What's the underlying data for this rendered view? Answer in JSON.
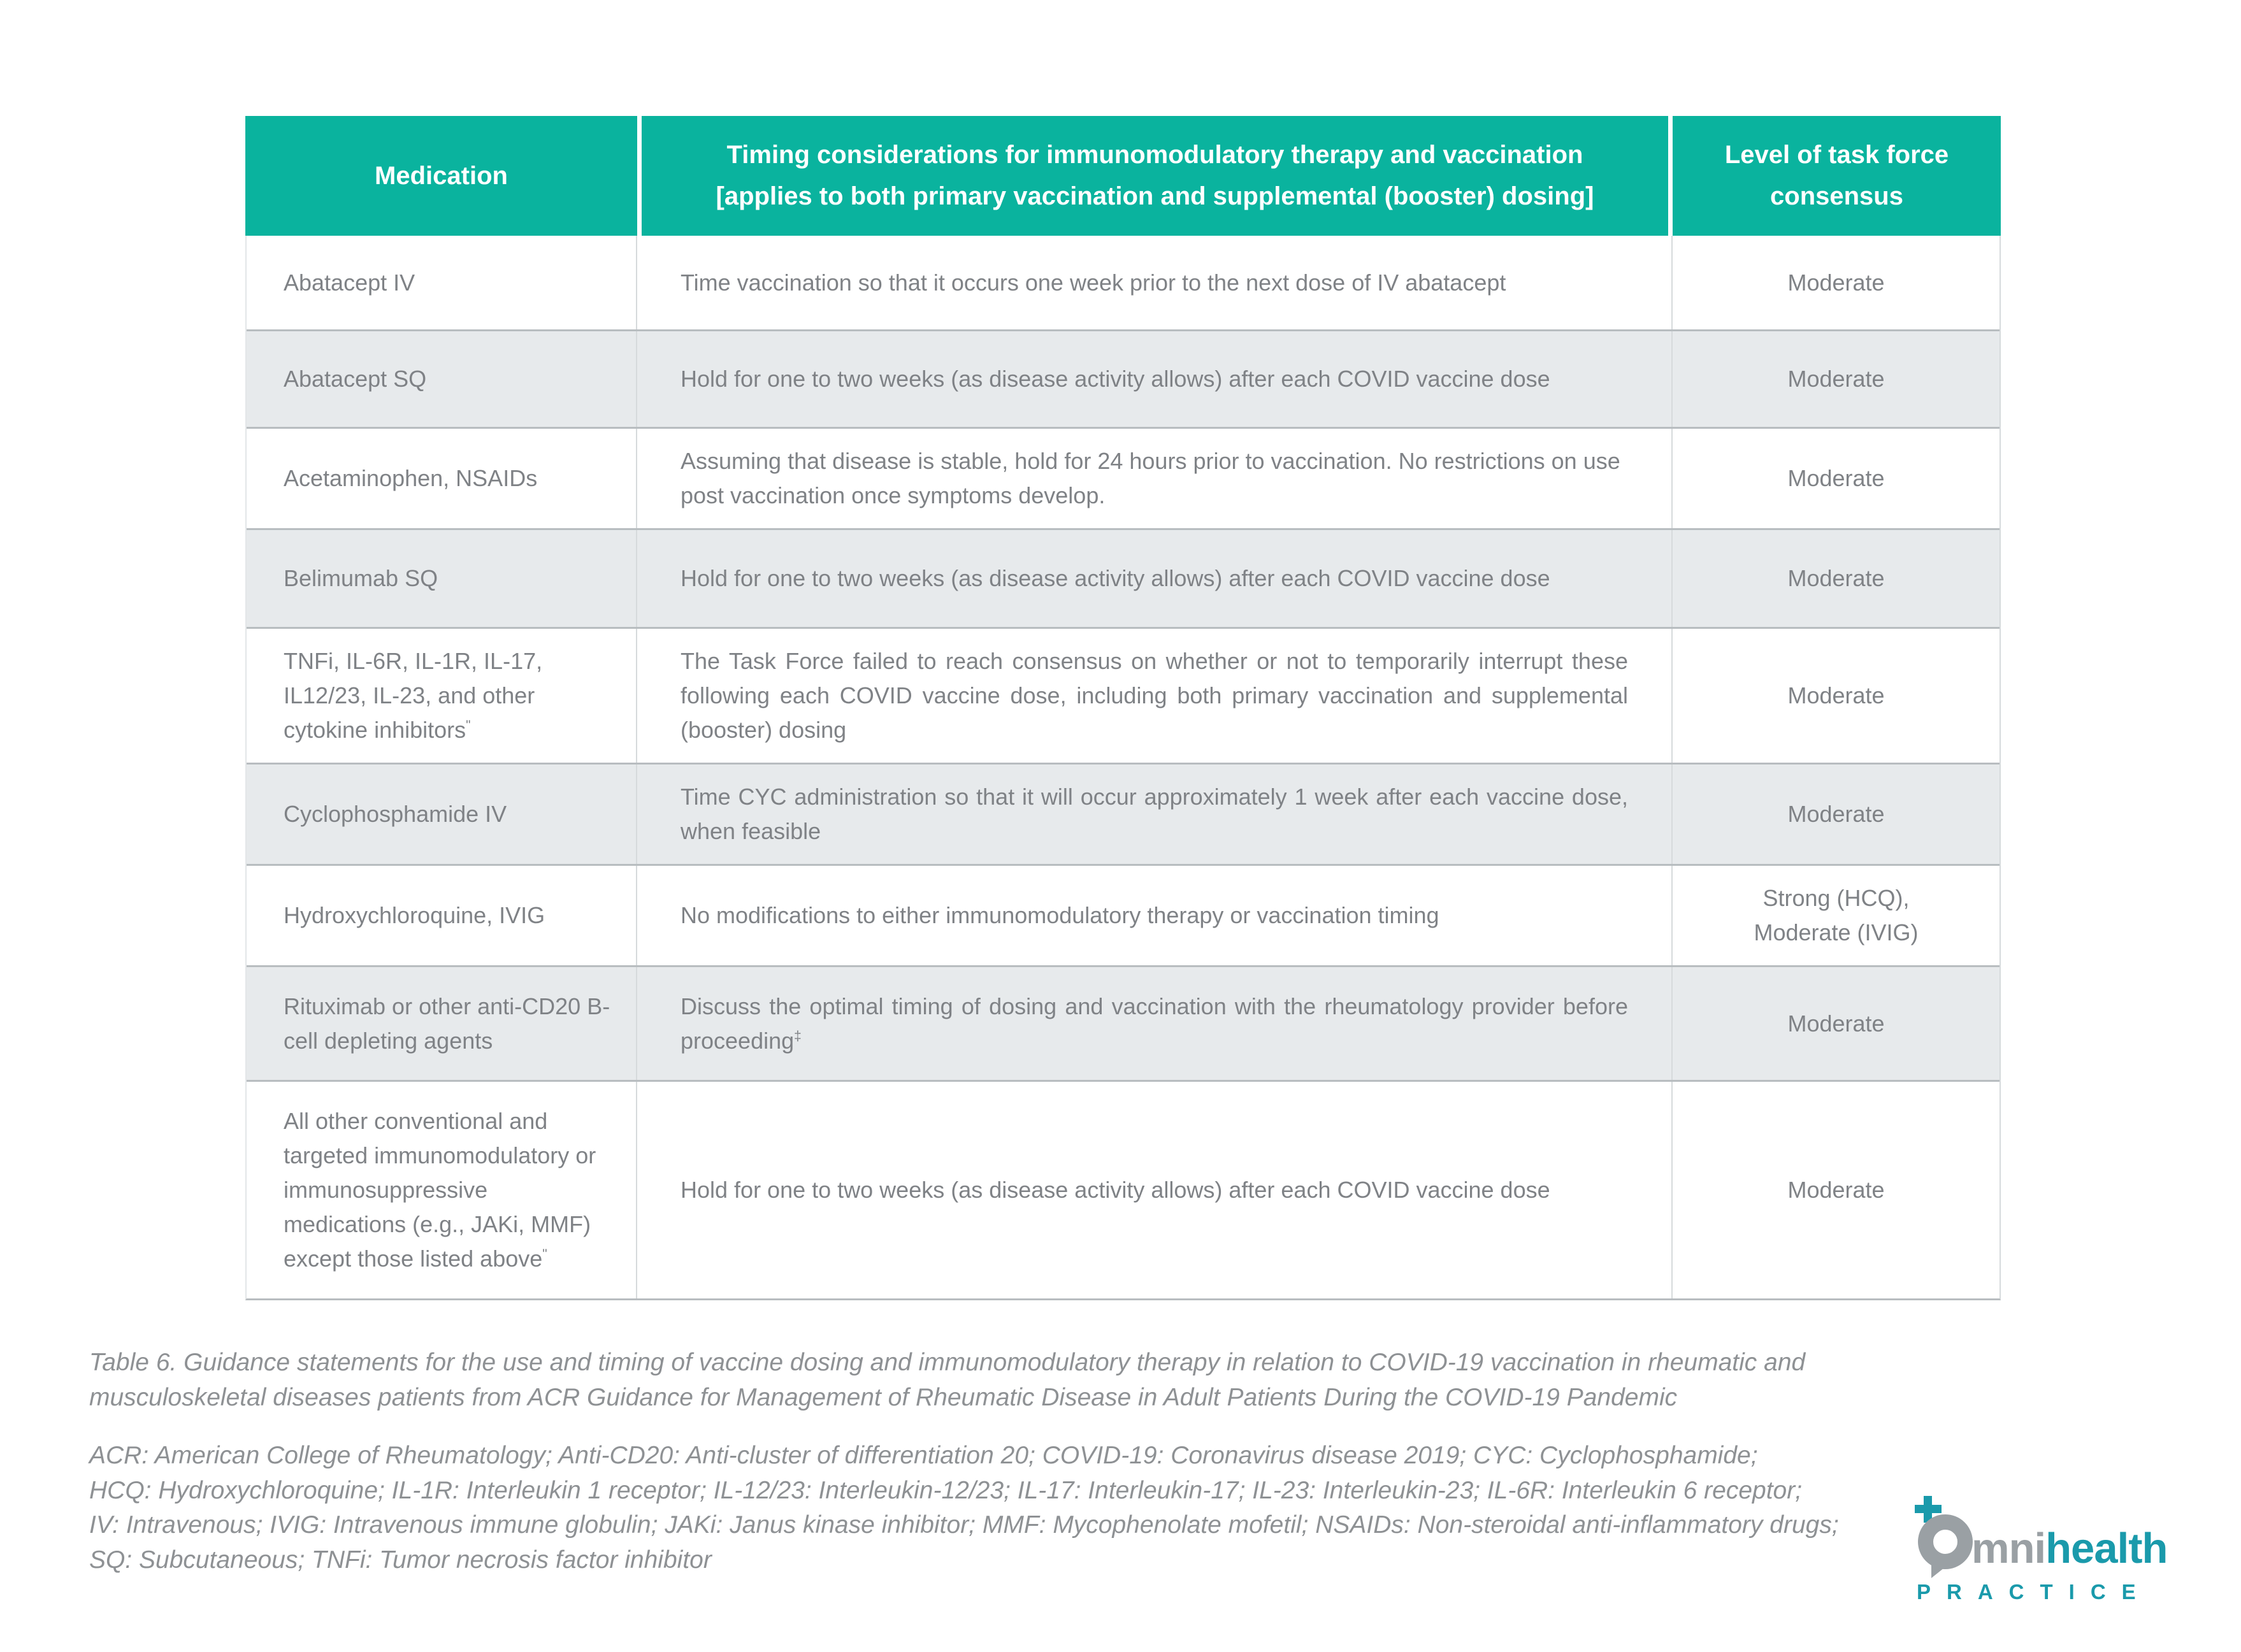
{
  "table": {
    "headers": {
      "medication": "Medication",
      "timing": "Timing considerations for immunomodulatory therapy and vaccination\n[applies to both primary vaccination and supplemental (booster) dosing]",
      "consensus": "Level of task force consensus"
    },
    "rows": [
      {
        "medication": "Abatacept IV",
        "medication_sup": "",
        "timing": "Time vaccination so that it occurs one week prior to the next dose of IV abatacept",
        "timing_sup": "",
        "consensus": "Moderate"
      },
      {
        "medication": "Abatacept SQ",
        "medication_sup": "",
        "timing": "Hold for one to two weeks (as disease activity allows) after each COVID vaccine dose",
        "timing_sup": "",
        "consensus": "Moderate"
      },
      {
        "medication": "Acetaminophen, NSAIDs",
        "medication_sup": "",
        "timing": "Assuming that disease is stable, hold for 24 hours prior to vaccination. No restrictions on use post vaccination once symptoms develop.",
        "timing_sup": "",
        "consensus": "Moderate"
      },
      {
        "medication": "Belimumab SQ",
        "medication_sup": "",
        "timing": "Hold for one to two weeks (as disease activity allows) after each COVID vaccine dose",
        "timing_sup": "",
        "consensus": "Moderate"
      },
      {
        "medication": "TNFi, IL-6R, IL-1R, IL-17, IL12/23, IL-23, and other cytokine inhibitors",
        "medication_sup": "\"",
        "timing": "The Task Force failed to reach consensus on whether or not to temporarily interrupt these following each COVID vaccine dose, including both primary vaccination and supplemental (booster) dosing",
        "timing_sup": "",
        "consensus": "Moderate"
      },
      {
        "medication": "Cyclophosphamide IV",
        "medication_sup": "",
        "timing": "Time CYC administration so that it will occur approximately 1 week after each vaccine dose, when feasible",
        "timing_sup": "",
        "consensus": "Moderate"
      },
      {
        "medication": "Hydroxychloroquine, IVIG",
        "medication_sup": "",
        "timing": "No modifications to either immunomodulatory therapy or vaccination timing",
        "timing_sup": "",
        "consensus": "Strong (HCQ),\nModerate (IVIG)"
      },
      {
        "medication": "Rituximab or other anti-CD20 B-cell depleting agents",
        "medication_sup": "",
        "timing": "Discuss the optimal timing of dosing and vaccination with the rheumatology provider before proceeding",
        "timing_sup": "‡",
        "consensus": "Moderate"
      },
      {
        "medication": "All other conventional and targeted immunomodulatory or immunosuppressive medications (e.g., JAKi, MMF) except those listed above",
        "medication_sup": "\"",
        "timing": "Hold for one to two weeks (as disease activity allows) after each COVID vaccine dose",
        "timing_sup": "",
        "consensus": "Moderate"
      }
    ]
  },
  "caption": "Table 6. Guidance statements for the use and timing of vaccine dosing and immunomodulatory therapy in relation to COVID-19 vaccination in rheumatic and\nmusculoskeletal diseases patients from ACR Guidance for Management of Rheumatic Disease in Adult Patients During the COVID-19 Pandemic",
  "abbreviations": "ACR: American College of Rheumatology; Anti-CD20: Anti-cluster of differentiation 20; COVID-19: Coronavirus disease 2019; CYC: Cyclophosphamide;\nHCQ: Hydroxychloroquine; IL-1R: Interleukin 1 receptor; IL-12/23: Interleukin-12/23; IL-17: Interleukin-17; IL-23: Interleukin-23; IL-6R: Interleukin 6 receptor;\nIV: Intravenous; IVIG: Intravenous immune globulin; JAKi: Janus kinase inhibitor; MMF: Mycophenolate mofetil; NSAIDs: Non-steroidal anti-inflammatory drugs;\nSQ: Subcutaneous; TNFi: Tumor necrosis factor inhibitor",
  "logo": {
    "omni_letters": "mni",
    "health": "health",
    "subtitle": "PRACTICE"
  },
  "colors": {
    "header_teal": "#0ab39e",
    "row_shaded": "#e7eaec",
    "body_text_gray": "#7f8286",
    "caption_gray": "#8e9194",
    "logo_teal": "#1a9aab",
    "logo_gray": "#9aa0a4"
  }
}
